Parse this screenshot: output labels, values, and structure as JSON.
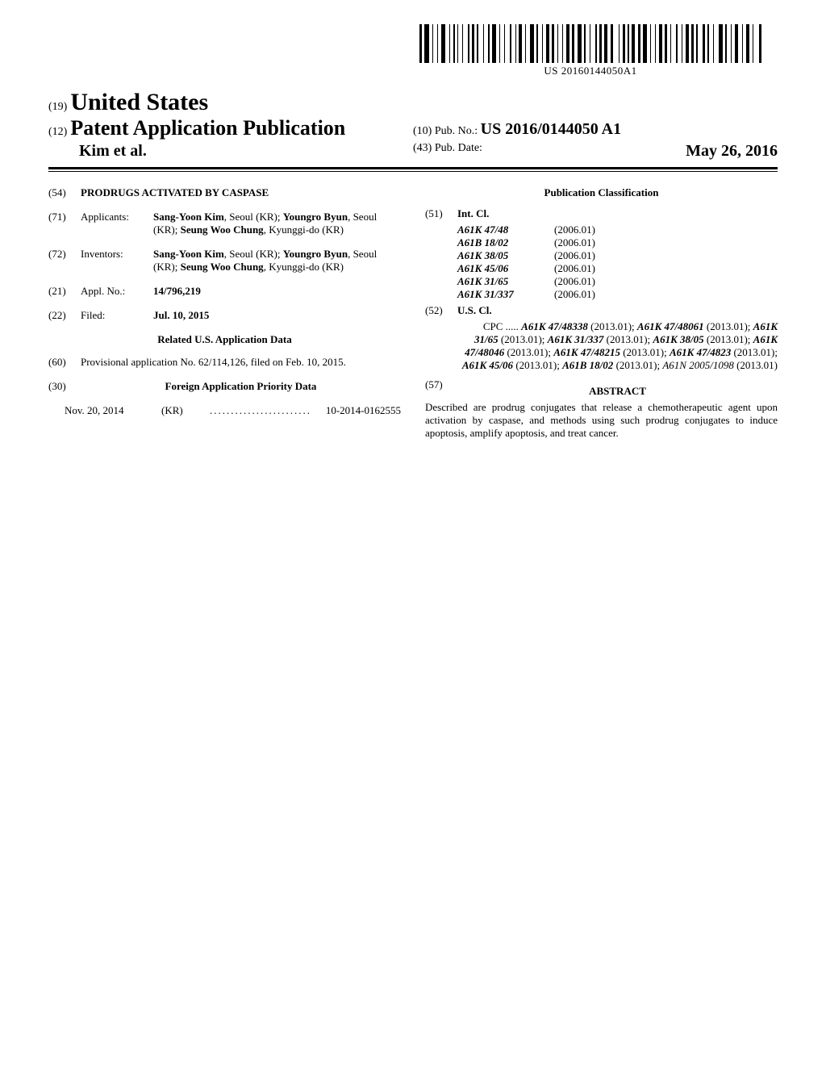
{
  "barcode": {
    "text": "US 20160144050A1"
  },
  "header": {
    "country_line_prefix": "(19)",
    "country": "United States",
    "pub_line_prefix": "(12)",
    "pub_type": "Patent Application Publication",
    "authors": "Kim et al.",
    "pubno_prefix": "(10)",
    "pubno_label": "Pub. No.:",
    "pubno_value": "US 2016/0144050 A1",
    "pubdate_prefix": "(43)",
    "pubdate_label": "Pub. Date:",
    "pubdate_value": "May 26, 2016"
  },
  "left": {
    "f54": {
      "num": "(54)",
      "title": "PRODRUGS ACTIVATED BY CASPASE"
    },
    "f71": {
      "num": "(71)",
      "label": "Applicants:",
      "people": [
        {
          "name": "Sang-Yoon Kim",
          "loc": ", Seoul (KR); "
        },
        {
          "name": "Youngro Byun",
          "loc": ", Seoul (KR); "
        },
        {
          "name": "Seung Woo Chung",
          "loc": ", Kyunggi-do (KR)"
        }
      ]
    },
    "f72": {
      "num": "(72)",
      "label": "Inventors:",
      "people": [
        {
          "name": "Sang-Yoon Kim",
          "loc": ", Seoul (KR); "
        },
        {
          "name": "Youngro Byun",
          "loc": ", Seoul (KR); "
        },
        {
          "name": "Seung Woo Chung",
          "loc": ", Kyunggi-do (KR)"
        }
      ]
    },
    "f21": {
      "num": "(21)",
      "label": "Appl. No.:",
      "value": "14/796,219"
    },
    "f22": {
      "num": "(22)",
      "label": "Filed:",
      "value": "Jul. 10, 2015"
    },
    "related_heading": "Related U.S. Application Data",
    "f60": {
      "num": "(60)",
      "text": "Provisional application No. 62/114,126, filed on Feb. 10, 2015."
    },
    "f30": {
      "num": "(30)",
      "heading": "Foreign Application Priority Data"
    },
    "foreign": {
      "date": "Nov. 20, 2014",
      "cc": "(KR)",
      "dots": "........................",
      "appnum": "10-2014-0162555"
    }
  },
  "right": {
    "pubclass_heading": "Publication Classification",
    "f51": {
      "num": "(51)",
      "label": "Int. Cl."
    },
    "intcl": [
      {
        "code": "A61K 47/48",
        "year": "(2006.01)"
      },
      {
        "code": "A61B 18/02",
        "year": "(2006.01)"
      },
      {
        "code": "A61K 38/05",
        "year": "(2006.01)"
      },
      {
        "code": "A61K 45/06",
        "year": "(2006.01)"
      },
      {
        "code": "A61K 31/65",
        "year": "(2006.01)"
      },
      {
        "code": "A61K 31/337",
        "year": "(2006.01)"
      }
    ],
    "f52": {
      "num": "(52)",
      "label": "U.S. Cl."
    },
    "cpc_lead": "CPC .....",
    "cpc_codes": [
      {
        "code": "A61K 47/48338",
        "year": "(2013.01)",
        "bold": true,
        "sep": "; "
      },
      {
        "code": "A61K 47/48061",
        "year": "(2013.01)",
        "bold": true,
        "sep": "; "
      },
      {
        "code": "A61K 31/65",
        "year": "(2013.01)",
        "bold": true,
        "sep": "; "
      },
      {
        "code": "A61K 31/337",
        "year": "(2013.01)",
        "bold": true,
        "sep": "; "
      },
      {
        "code": "A61K 38/05",
        "year": "(2013.01)",
        "bold": true,
        "sep": "; "
      },
      {
        "code": "A61K 47/48046",
        "year": "(2013.01)",
        "bold": true,
        "sep": "; "
      },
      {
        "code": "A61K 47/48215",
        "year": "(2013.01)",
        "bold": true,
        "sep": "; "
      },
      {
        "code": "A61K 47/4823",
        "year": "(2013.01)",
        "bold": true,
        "sep": "; "
      },
      {
        "code": "A61K 45/06",
        "year": "(2013.01)",
        "bold": true,
        "sep": "; "
      },
      {
        "code": "A61B 18/02",
        "year": "(2013.01)",
        "bold": true,
        "sep": "; "
      },
      {
        "code": "A61N 2005/1098",
        "year": "(2013.01)",
        "bold": false,
        "sep": ""
      }
    ],
    "f57": {
      "num": "(57)",
      "heading": "ABSTRACT"
    },
    "abstract": "Described are prodrug conjugates that release a chemotherapeutic agent upon activation by caspase, and methods using such prodrug conjugates to induce apoptosis, amplify apoptosis, and treat cancer."
  },
  "barcode_widths": [
    3,
    1,
    6,
    2,
    1,
    3,
    1,
    2,
    5,
    3,
    1,
    2,
    2,
    1,
    1,
    3,
    1,
    4,
    2,
    1,
    3,
    1,
    2,
    4,
    1,
    3,
    2,
    1,
    5,
    2,
    1,
    3,
    1,
    4,
    2,
    3,
    1,
    1,
    4,
    2,
    1,
    3,
    5,
    1,
    2,
    3,
    1,
    2,
    4,
    1,
    3,
    2,
    1,
    3,
    1,
    2,
    4,
    1,
    3,
    2,
    5,
    1,
    2,
    3,
    1,
    4,
    2,
    1,
    3,
    1,
    4,
    2,
    3,
    5,
    1,
    2,
    3,
    1,
    2,
    1,
    4,
    2,
    3,
    1,
    5,
    2,
    1,
    3,
    1,
    2,
    4,
    1,
    3,
    2,
    1,
    4,
    2,
    3,
    1,
    2,
    4,
    1,
    3,
    1,
    2,
    4,
    3,
    1,
    2,
    3,
    1,
    4,
    5,
    1,
    2,
    3,
    1,
    2,
    4,
    3,
    1,
    2,
    4,
    2,
    1,
    5,
    3
  ]
}
